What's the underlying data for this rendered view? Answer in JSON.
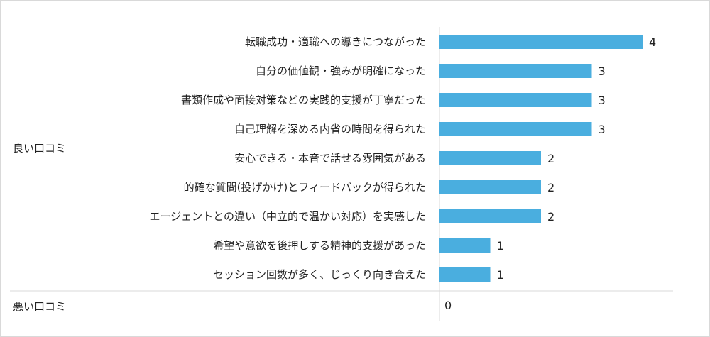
{
  "chart_data": {
    "type": "bar",
    "orientation": "horizontal",
    "groups": [
      {
        "name": "良い口コミ",
        "categories": [
          "転職成功・適職への導きにつながった",
          "自分の価値観・強みが明確になった",
          "書類作成や面接対策などの実践的支援が丁寧だった",
          "自己理解を深める内省の時間を得られた",
          "安心できる・本音で話せる雰囲気がある",
          "的確な質問(投げかけ)とフィードバックが得られた",
          "エージェントとの違い（中立的で温かい対応）を実感した",
          "希望や意欲を後押しする精神的支援があった",
          "セッション回数が多く、じっくり向き合えた"
        ],
        "values": [
          4,
          3,
          3,
          3,
          2,
          2,
          2,
          1,
          1
        ]
      },
      {
        "name": "悪い口コミ",
        "categories": [],
        "values": [],
        "total_label": "0"
      }
    ],
    "xlim": [
      0,
      4.5
    ],
    "bar_color": "#4aaedf",
    "grid": false
  }
}
